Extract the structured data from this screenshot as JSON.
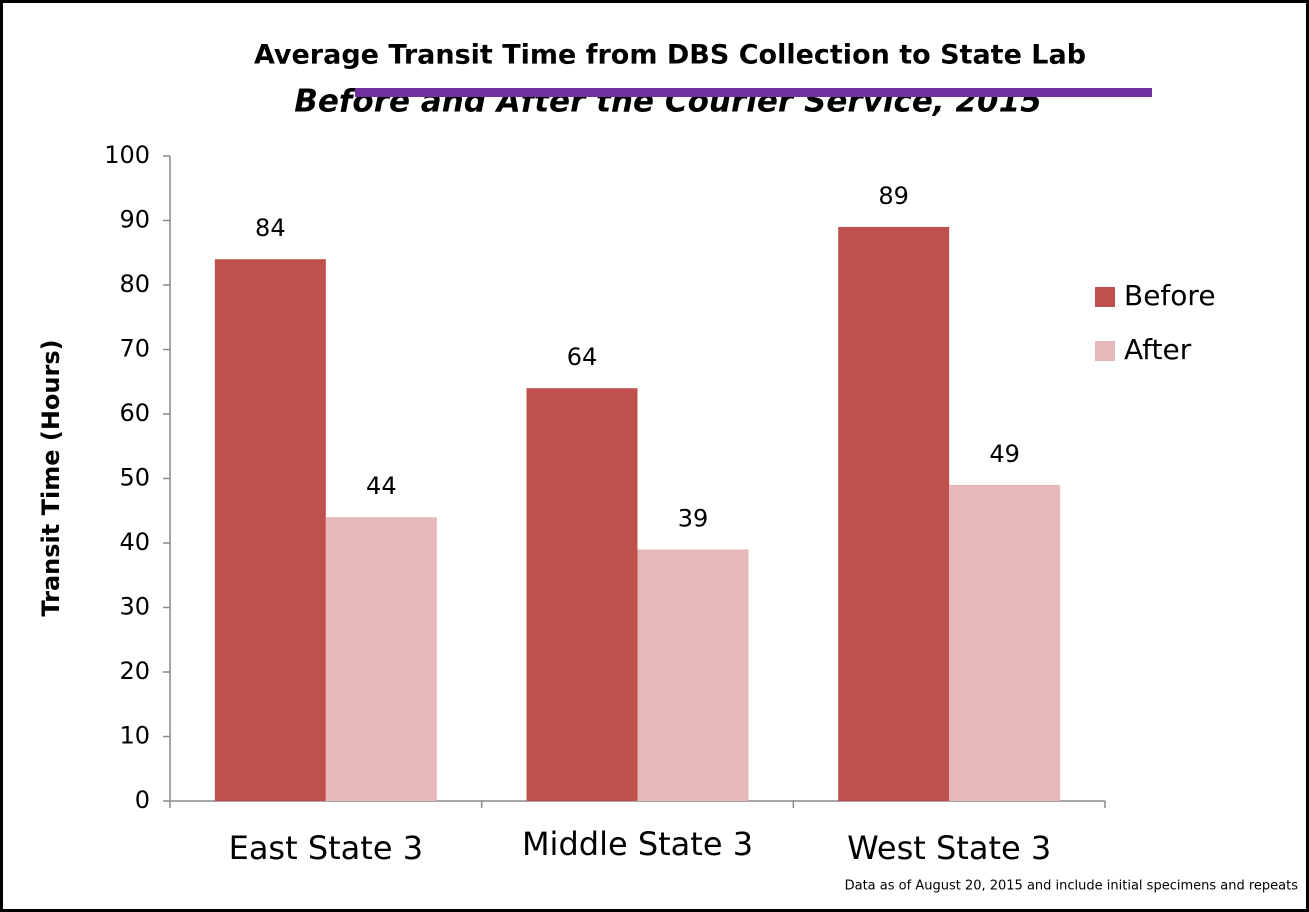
{
  "chart_data": {
    "type": "bar",
    "title": "Average Transit Time from DBS Collection to State Lab",
    "subtitle": "Before and After the Courier Service, 2015",
    "y_label": "Transit Time (Hours)",
    "note": "Data as of August 20, 2015 and include initial specimens and repeats",
    "categories": [
      "East State 3",
      "Middle State 3",
      "West State 3"
    ],
    "series": [
      {
        "name": "Before",
        "color": "#c0504d",
        "values": [
          84,
          64,
          89
        ]
      },
      {
        "name": "After",
        "color": "#e6b9b8",
        "values": [
          44,
          39,
          49
        ]
      }
    ],
    "ylim": [
      0,
      100
    ],
    "yticks": [
      0,
      10,
      20,
      30,
      40,
      50,
      60,
      70,
      80,
      90,
      100
    ],
    "legend": "right"
  }
}
